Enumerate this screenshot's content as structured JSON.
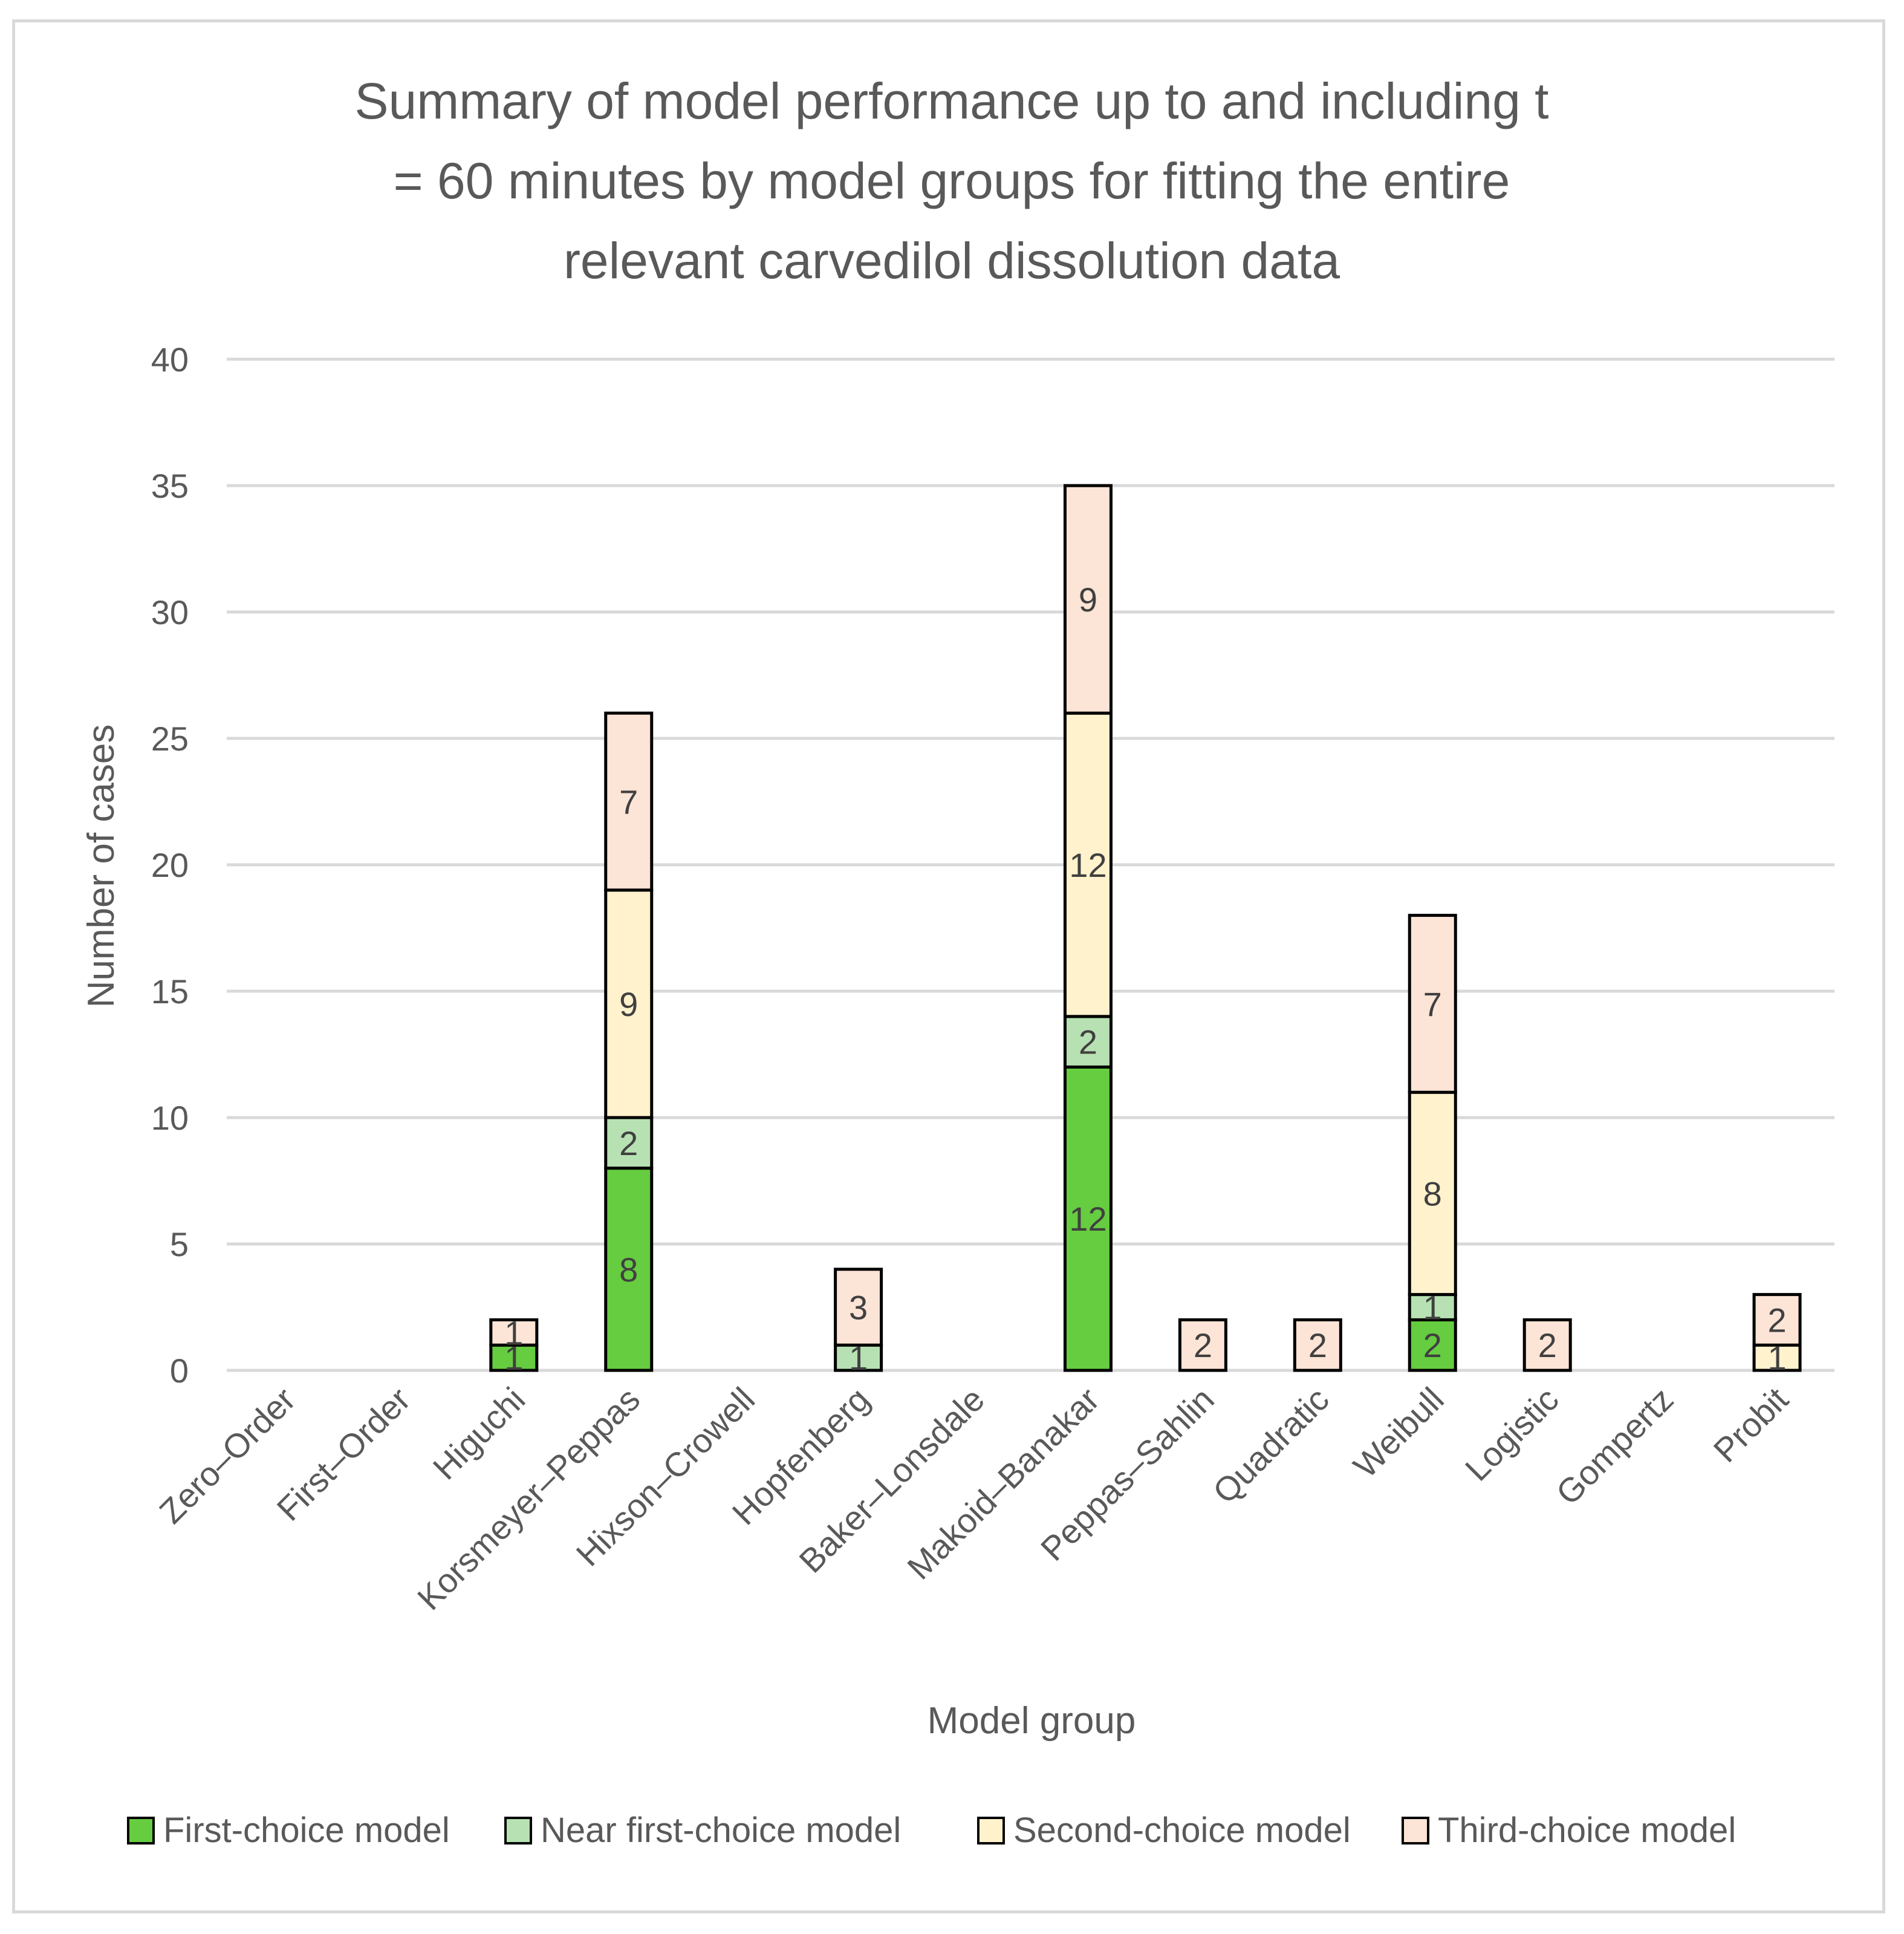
{
  "chart_data": {
    "type": "bar",
    "stacked": true,
    "title": "Summary of model performance up to and including t = 60 minutes by model groups for fitting the entire relevant carvedilol dissolution data",
    "title_lines": [
      "Summary of model performance up to and including t",
      "= 60 minutes by model groups for fitting the entire",
      "relevant carvedilol dissolution data"
    ],
    "xlabel": "Model group",
    "ylabel": "Number of cases",
    "ylim": [
      0,
      40
    ],
    "yticks": [
      0,
      5,
      10,
      15,
      20,
      25,
      30,
      35,
      40
    ],
    "grid": true,
    "legend_position": "bottom",
    "categories": [
      "Zero–Order",
      "First–Order",
      "Higuchi",
      "Korsmeyer–Peppas",
      "Hixson–Crowell",
      "Hopfenberg",
      "Baker–Lonsdale",
      "Makoid–Banakar",
      "Peppas–Sahlin",
      "Quadratic",
      "Weibull",
      "Logistic",
      "Gompertz",
      "Probit"
    ],
    "series": [
      {
        "name": "First-choice model",
        "color": "#66cc40",
        "values": [
          0,
          0,
          1,
          8,
          0,
          0,
          0,
          12,
          0,
          0,
          2,
          0,
          0,
          0
        ]
      },
      {
        "name": "Near first-choice model",
        "color": "#b7e1b2",
        "values": [
          0,
          0,
          0,
          2,
          0,
          1,
          0,
          2,
          0,
          0,
          1,
          0,
          0,
          0
        ]
      },
      {
        "name": "Second-choice model",
        "color": "#fff2cc",
        "values": [
          0,
          0,
          0,
          9,
          0,
          0,
          0,
          12,
          0,
          0,
          8,
          0,
          0,
          1
        ]
      },
      {
        "name": "Third-choice model",
        "color": "#fce4d6",
        "values": [
          0,
          0,
          1,
          7,
          0,
          3,
          0,
          9,
          2,
          2,
          7,
          2,
          0,
          2
        ]
      }
    ]
  }
}
